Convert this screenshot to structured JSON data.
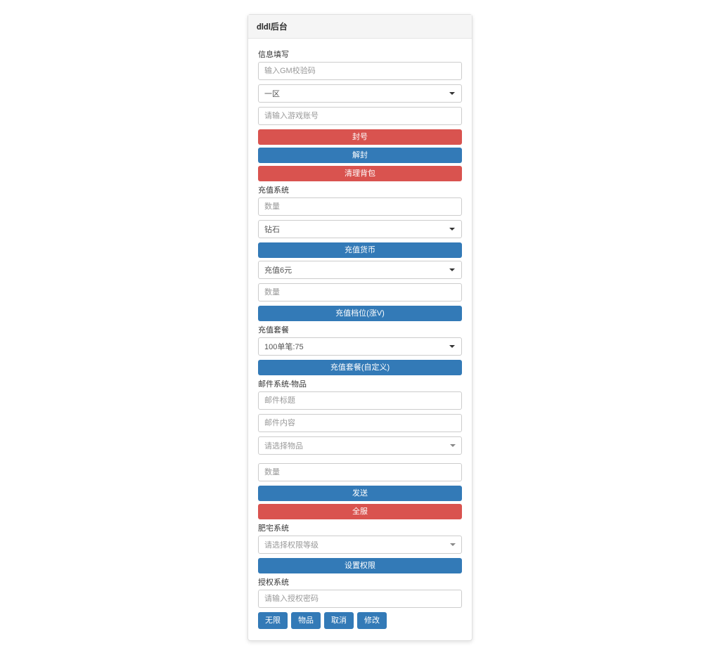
{
  "header": {
    "title": "dldl后台"
  },
  "colors": {
    "panel_border": "#e0e0e0",
    "header_bg": "#f5f5f5",
    "btn_danger": "#d9534f",
    "btn_primary": "#337ab7",
    "input_border": "#cccccc",
    "placeholder": "#999999"
  },
  "section_info": {
    "label": "信息填写",
    "gm_placeholder": "输入GM校验码",
    "zone_selected": "一区",
    "account_placeholder": "请输入游戏账号",
    "btn_ban": "封号",
    "btn_unban": "解封",
    "btn_clearbag": "清理背包"
  },
  "section_recharge": {
    "label": "充值系统",
    "qty_placeholder": "数量",
    "currency_selected": "钻石",
    "btn_currency": "充值货币",
    "level_selected": "充值6元",
    "qty2_placeholder": "数量",
    "btn_level": "充值档位(涨V)"
  },
  "section_package": {
    "label": "充值套餐",
    "package_selected": "100单笔:75",
    "btn_package": "充值套餐(自定义)"
  },
  "section_mail": {
    "label": "邮件系统-物品",
    "title_placeholder": "邮件标题",
    "content_placeholder": "邮件内容",
    "item_placeholder": "请选择物品",
    "qty_placeholder": "数量",
    "btn_send": "发送",
    "btn_allserver": "全服"
  },
  "section_vip": {
    "label": "肥宅系统",
    "level_placeholder": "请选择权限等级",
    "btn_set": "设置权限"
  },
  "section_auth": {
    "label": "授权系统",
    "code_placeholder": "请输入授权密码",
    "btn_unlimited": "无限",
    "btn_item": "物品",
    "btn_cancel": "取消",
    "btn_modify": "修改"
  }
}
